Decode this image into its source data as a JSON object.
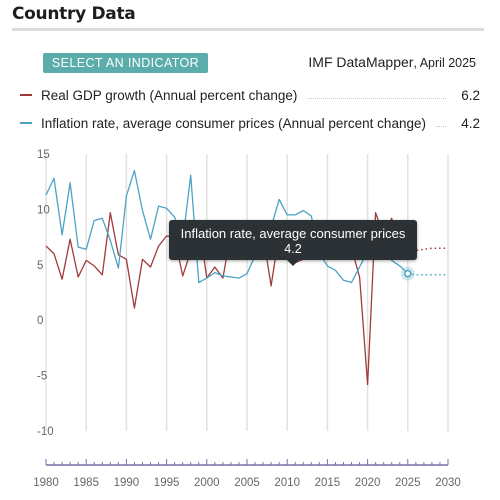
{
  "header": {
    "title": "Country Data"
  },
  "select_button": {
    "label": "SELECT AN INDICATOR"
  },
  "source": {
    "name": "IMF DataMapper",
    "date": ", April 2025"
  },
  "legend": [
    {
      "label": "Real GDP growth (Annual percent change)",
      "value": "6.2",
      "color": "#a03a3a"
    },
    {
      "label": "Inflation rate, average consumer prices (Annual percent change)",
      "value": "4.2",
      "color": "#4ba3c3"
    }
  ],
  "tooltip": {
    "title": "Inflation rate, average consumer prices",
    "value": "4.2"
  },
  "chart_data": {
    "type": "line",
    "ylim": [
      -10,
      15
    ],
    "xlim": [
      1980,
      2030
    ],
    "y_ticks": [
      15,
      10,
      5,
      0,
      -5,
      -10
    ],
    "x_ticks": [
      1980,
      1985,
      1990,
      1995,
      2000,
      2005,
      2010,
      2015,
      2020,
      2025,
      2030
    ],
    "last_actual_year": 2025,
    "series": [
      {
        "name": "Real GDP growth (Annual percent change)",
        "color": "#a03a3a",
        "x": [
          1980,
          1981,
          1982,
          1983,
          1984,
          1985,
          1986,
          1987,
          1988,
          1989,
          1990,
          1991,
          1992,
          1993,
          1994,
          1995,
          1996,
          1997,
          1998,
          1999,
          2000,
          2001,
          2002,
          2003,
          2004,
          2005,
          2006,
          2007,
          2008,
          2009,
          2010,
          2011,
          2012,
          2013,
          2014,
          2015,
          2016,
          2017,
          2018,
          2019,
          2020,
          2021,
          2022,
          2023,
          2024,
          2025,
          2026,
          2027,
          2028,
          2029,
          2030
        ],
        "values": [
          6.7,
          6.0,
          3.7,
          7.3,
          3.9,
          5.4,
          4.9,
          4.1,
          9.7,
          5.9,
          5.5,
          1.1,
          5.5,
          4.8,
          6.7,
          7.6,
          7.5,
          4.0,
          6.2,
          8.8,
          3.8,
          4.8,
          3.8,
          7.9,
          7.9,
          7.9,
          8.0,
          7.7,
          3.1,
          7.9,
          8.5,
          5.2,
          5.5,
          6.4,
          7.4,
          8.0,
          8.3,
          6.8,
          6.5,
          3.9,
          -5.8,
          9.7,
          7.6,
          9.2,
          6.5,
          6.2,
          6.3,
          6.4,
          6.5,
          6.5,
          6.5
        ]
      },
      {
        "name": "Inflation rate, average consumer prices (Annual percent change)",
        "color": "#4ba3c3",
        "x": [
          1980,
          1981,
          1982,
          1983,
          1984,
          1985,
          1986,
          1987,
          1988,
          1989,
          1990,
          1991,
          1992,
          1993,
          1994,
          1995,
          1996,
          1997,
          1998,
          1999,
          2000,
          2001,
          2002,
          2003,
          2004,
          2005,
          2006,
          2007,
          2008,
          2009,
          2010,
          2011,
          2012,
          2013,
          2014,
          2015,
          2016,
          2017,
          2018,
          2019,
          2020,
          2021,
          2022,
          2023,
          2024,
          2025,
          2026,
          2027,
          2028,
          2029,
          2030
        ],
        "values": [
          11.3,
          12.8,
          7.7,
          12.4,
          6.6,
          6.4,
          9.0,
          9.2,
          7.2,
          4.7,
          11.2,
          13.5,
          9.9,
          7.3,
          10.3,
          10.1,
          9.3,
          7.1,
          13.1,
          3.4,
          3.8,
          4.3,
          4.0,
          3.9,
          3.8,
          4.2,
          5.8,
          6.4,
          8.4,
          10.9,
          9.5,
          9.5,
          9.9,
          9.4,
          6.0,
          4.9,
          4.5,
          3.6,
          3.4,
          4.8,
          6.2,
          5.5,
          6.7,
          5.4,
          4.9,
          4.2,
          4.1,
          4.1,
          4.1,
          4.1,
          4.1
        ]
      }
    ]
  }
}
